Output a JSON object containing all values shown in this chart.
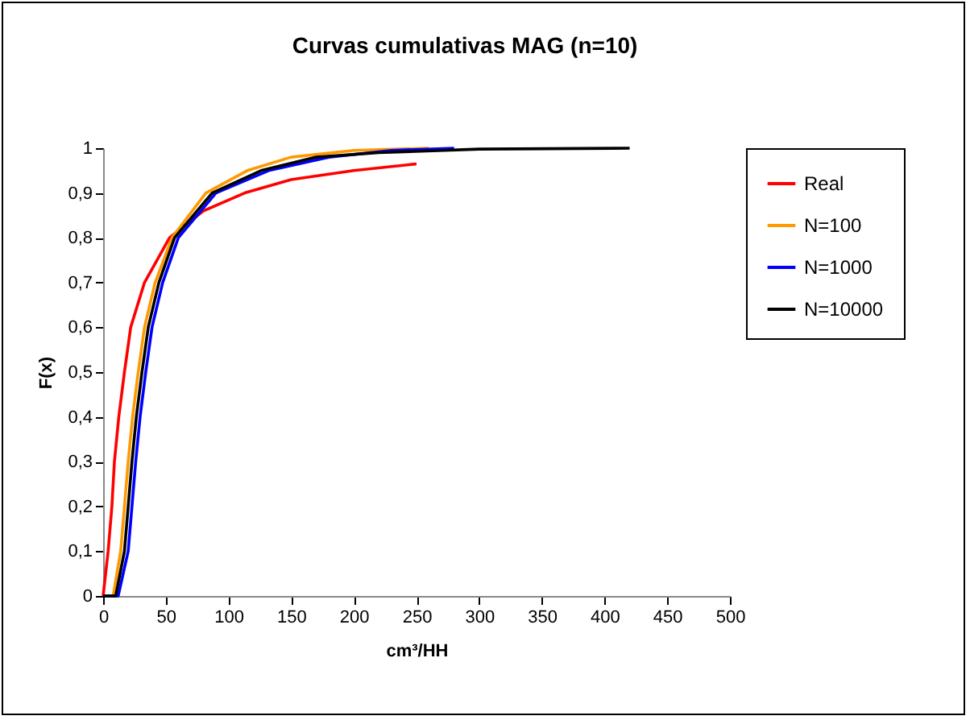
{
  "chart_data": {
    "type": "line",
    "title": "Curvas cumulativas MAG (n=10)",
    "xlabel": "cm³/HH",
    "ylabel": "F(x)",
    "xlim": [
      0,
      500
    ],
    "xticks": [
      0,
      50,
      100,
      150,
      200,
      250,
      300,
      350,
      400,
      450,
      500
    ],
    "ylim": [
      0,
      1
    ],
    "yticks": [
      {
        "value": 0,
        "label": "0"
      },
      {
        "value": 0.1,
        "label": "0,1"
      },
      {
        "value": 0.2,
        "label": "0,2"
      },
      {
        "value": 0.3,
        "label": "0,3"
      },
      {
        "value": 0.4,
        "label": "0,4"
      },
      {
        "value": 0.5,
        "label": "0,5"
      },
      {
        "value": 0.6,
        "label": "0,6"
      },
      {
        "value": 0.7,
        "label": "0,7"
      },
      {
        "value": 0.8,
        "label": "0,8"
      },
      {
        "value": 0.9,
        "label": "0,9"
      },
      {
        "value": 1,
        "label": "1"
      }
    ],
    "grid": false,
    "legend": "right",
    "marker": "none",
    "line_style": "solid",
    "series": [
      {
        "name": "Real",
        "color": "#ff0000",
        "x": [
          0,
          4,
          7,
          9,
          12.5,
          17,
          22,
          33,
          53,
          80,
          113,
          150,
          200,
          250
        ],
        "values": [
          0,
          0.1,
          0.2,
          0.3,
          0.4,
          0.5,
          0.6,
          0.7,
          0.8,
          0.86,
          0.9,
          0.93,
          0.95,
          0.965
        ]
      },
      {
        "name": "N=100",
        "color": "#ff9900",
        "x": [
          0,
          8,
          14,
          17,
          20,
          23.5,
          28,
          33,
          41.5,
          55,
          82,
          115,
          150,
          200,
          260
        ],
        "values": [
          0,
          0,
          0.1,
          0.2,
          0.3,
          0.4,
          0.5,
          0.6,
          0.7,
          0.8,
          0.9,
          0.95,
          0.98,
          0.995,
          1
        ]
      },
      {
        "name": "N=1000",
        "color": "#0000ff",
        "x": [
          0,
          12,
          20,
          23,
          26,
          29.5,
          34,
          39,
          47.5,
          60,
          90,
          132,
          180,
          230,
          280
        ],
        "values": [
          0,
          0,
          0.1,
          0.2,
          0.3,
          0.4,
          0.5,
          0.6,
          0.7,
          0.8,
          0.9,
          0.95,
          0.98,
          0.995,
          1
        ]
      },
      {
        "name": "N=10000",
        "color": "#000000",
        "x": [
          0,
          10,
          17,
          20,
          23,
          26.5,
          31,
          36,
          44.5,
          57,
          87,
          126,
          170,
          220,
          300,
          420
        ],
        "values": [
          0,
          0,
          0.1,
          0.2,
          0.3,
          0.4,
          0.5,
          0.6,
          0.7,
          0.8,
          0.9,
          0.95,
          0.98,
          0.99,
          0.998,
          1
        ]
      }
    ]
  }
}
